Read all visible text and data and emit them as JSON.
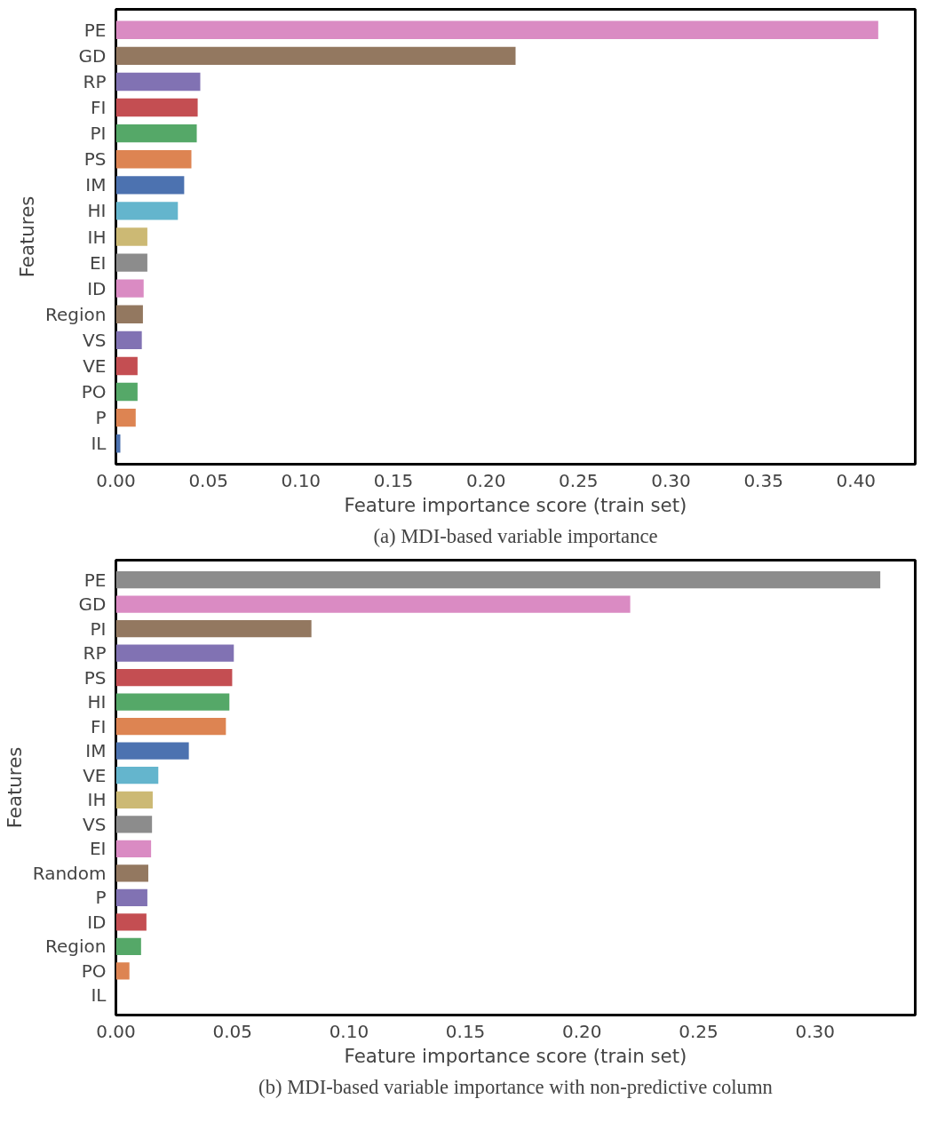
{
  "chart_data": [
    {
      "type": "bar",
      "orientation": "horizontal",
      "xlabel": "Feature importance score (train set)",
      "ylabel": "Features",
      "categories": [
        "PE",
        "GD",
        "RP",
        "FI",
        "PI",
        "PS",
        "IM",
        "HI",
        "IH",
        "EI",
        "ID",
        "Region",
        "VS",
        "VE",
        "PO",
        "P",
        "IL"
      ],
      "values": [
        0.412,
        0.216,
        0.0456,
        0.0442,
        0.0437,
        0.0408,
        0.0369,
        0.0335,
        0.017,
        0.017,
        0.015,
        0.0146,
        0.014,
        0.0117,
        0.0117,
        0.0107,
        0.0024
      ],
      "colors": [
        "#da8bc3",
        "#937860",
        "#8172b3",
        "#c44e52",
        "#55a868",
        "#dd8452",
        "#4c72b0",
        "#64b5cd",
        "#ccb974",
        "#8c8c8c",
        "#da8bc3",
        "#937860",
        "#8172b3",
        "#c44e52",
        "#55a868",
        "#dd8452",
        "#4c72b0"
      ],
      "xlim": [
        0,
        0.432
      ],
      "xticks": [
        {
          "value": 0,
          "label": "0.00"
        },
        {
          "value": 0.05,
          "label": "0.05"
        },
        {
          "value": 0.1,
          "label": "0.10"
        },
        {
          "value": 0.15,
          "label": "0.15"
        },
        {
          "value": 0.2,
          "label": "0.20"
        },
        {
          "value": 0.25,
          "label": "0.25"
        },
        {
          "value": 0.3,
          "label": "0.30"
        },
        {
          "value": 0.35,
          "label": "0.35"
        },
        {
          "value": 0.4,
          "label": "0.40"
        }
      ],
      "grid": false,
      "annotations": [
        "(a) MDI-based variable importance"
      ]
    },
    {
      "type": "bar",
      "orientation": "horizontal",
      "xlabel": "Feature importance score (train set)",
      "ylabel": "Features",
      "categories": [
        "PE",
        "GD",
        "PI",
        "RP",
        "PS",
        "HI",
        "FI",
        "IM",
        "VE",
        "IH",
        "VS",
        "EI",
        "Random",
        "P",
        "ID",
        "Region",
        "PO",
        "IL"
      ],
      "values": [
        0.328,
        0.2207,
        0.0839,
        0.0506,
        0.0499,
        0.0487,
        0.0472,
        0.0313,
        0.0182,
        0.0158,
        0.0155,
        0.0151,
        0.0139,
        0.0135,
        0.0131,
        0.0108,
        0.0058,
        0
      ],
      "colors": [
        "#8c8c8c",
        "#da8bc3",
        "#937860",
        "#8172b3",
        "#c44e52",
        "#55a868",
        "#dd8452",
        "#4c72b0",
        "#64b5cd",
        "#ccb974",
        "#8c8c8c",
        "#da8bc3",
        "#937860",
        "#8172b3",
        "#c44e52",
        "#55a868",
        "#dd8452",
        "#4c72b0"
      ],
      "xlim": [
        0,
        0.343
      ],
      "xticks": [
        {
          "value": 0,
          "label": "0.00"
        },
        {
          "value": 0.05,
          "label": "0.05"
        },
        {
          "value": 0.1,
          "label": "0.10"
        },
        {
          "value": 0.15,
          "label": "0.15"
        },
        {
          "value": 0.2,
          "label": "0.20"
        },
        {
          "value": 0.25,
          "label": "0.25"
        },
        {
          "value": 0.3,
          "label": "0.30"
        }
      ],
      "grid": false,
      "annotations": [
        "(b) MDI-based variable importance with non-predictive column"
      ]
    }
  ]
}
